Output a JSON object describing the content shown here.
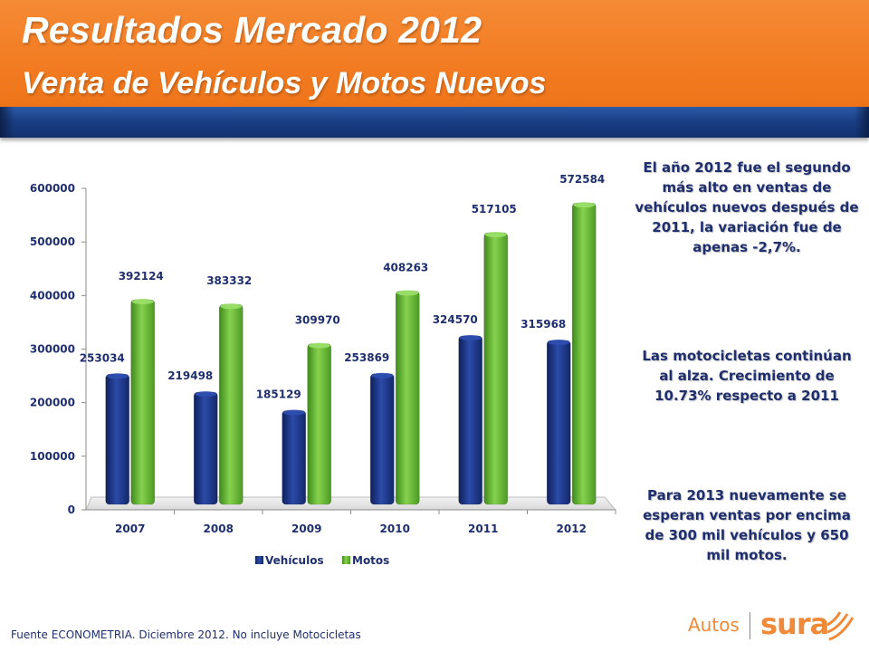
{
  "header": {
    "title": "Resultados Mercado 2012",
    "subtitle": "Venta de Vehículos y Motos Nuevos"
  },
  "colors": {
    "header_orange": "#f27c22",
    "band_blue": "#1a3f85",
    "vehiculos": "#1f3b8f",
    "motos": "#6cbf3a",
    "text_blue": "#1f2f6e",
    "brand": "#f08a38"
  },
  "chart_data": {
    "type": "bar",
    "categories": [
      "2007",
      "2008",
      "2009",
      "2010",
      "2011",
      "2012"
    ],
    "series": [
      {
        "name": "Vehículos",
        "values": [
          253034,
          219498,
          185129,
          253869,
          324570,
          315968
        ]
      },
      {
        "name": "Motos",
        "values": [
          392124,
          383332,
          309970,
          408263,
          517105,
          572584
        ]
      }
    ],
    "y_ticks": [
      "0",
      "100000",
      "200000",
      "300000",
      "400000",
      "500000",
      "600000"
    ],
    "ylim": [
      0,
      600000
    ],
    "legend_position": "bottom",
    "grid": false
  },
  "notes": {
    "note1": "El año 2012 fue el segundo más alto en ventas de vehículos nuevos después de 2011, la variación fue de apenas -2,7%.",
    "note2": "Las motocicletas continúan al alza. Crecimiento de 10.73% respecto a 2011",
    "note3": "Para 2013 nuevamente se esperan ventas por encima de 300 mil vehículos  y 650 mil motos."
  },
  "footer": {
    "source": "Fuente ECONOMETRIA. Diciembre 2012. No incluye Motocicletas"
  },
  "logo": {
    "autos": "Autos",
    "brand": "sura"
  }
}
